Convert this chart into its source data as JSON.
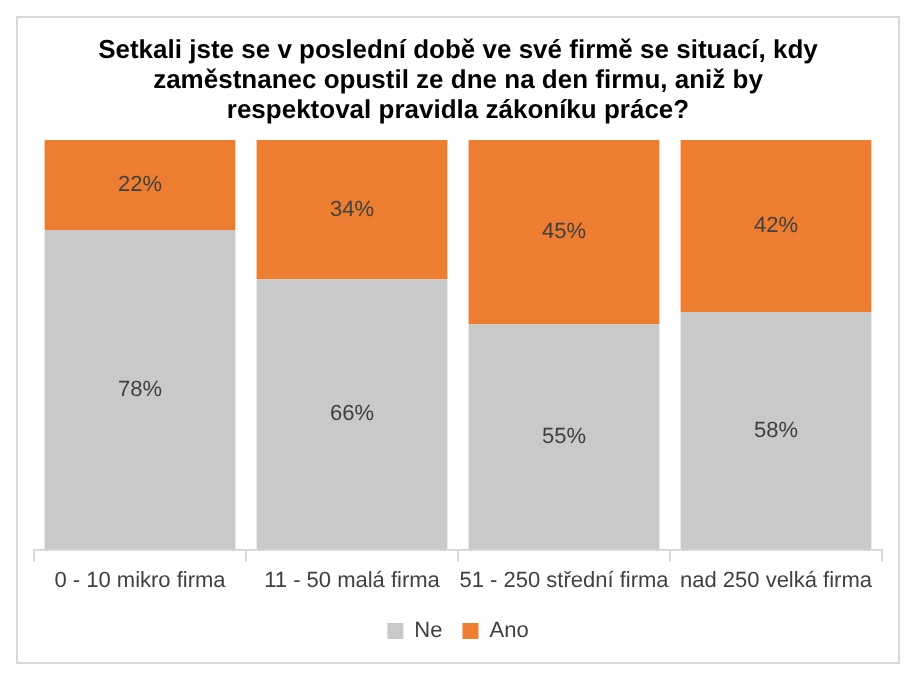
{
  "chart_data": {
    "type": "bar",
    "title": "Setkali jste se v poslední době ve své firmě se situací, kdy zaměstnanec opustil ze dne na den firmu, aniž by respektoval pravidla zákoníku práce?",
    "categories": [
      "0 - 10 mikro firma",
      "11 - 50 malá firma",
      "51 - 250 střední firma",
      "nad 250 velká firma"
    ],
    "series": [
      {
        "name": "Ne",
        "color": "#c9c9c9",
        "values": [
          78,
          66,
          55,
          58
        ],
        "value_labels": [
          "78%",
          "66%",
          "55%",
          "58%"
        ]
      },
      {
        "name": "Ano",
        "color": "#ed7d31",
        "values": [
          22,
          34,
          45,
          42
        ],
        "value_labels": [
          "22%",
          "34%",
          "45%",
          "42%"
        ]
      }
    ],
    "stacked": true,
    "ylim": [
      0,
      100
    ],
    "tick_labels": "x",
    "legend": "bottom"
  }
}
